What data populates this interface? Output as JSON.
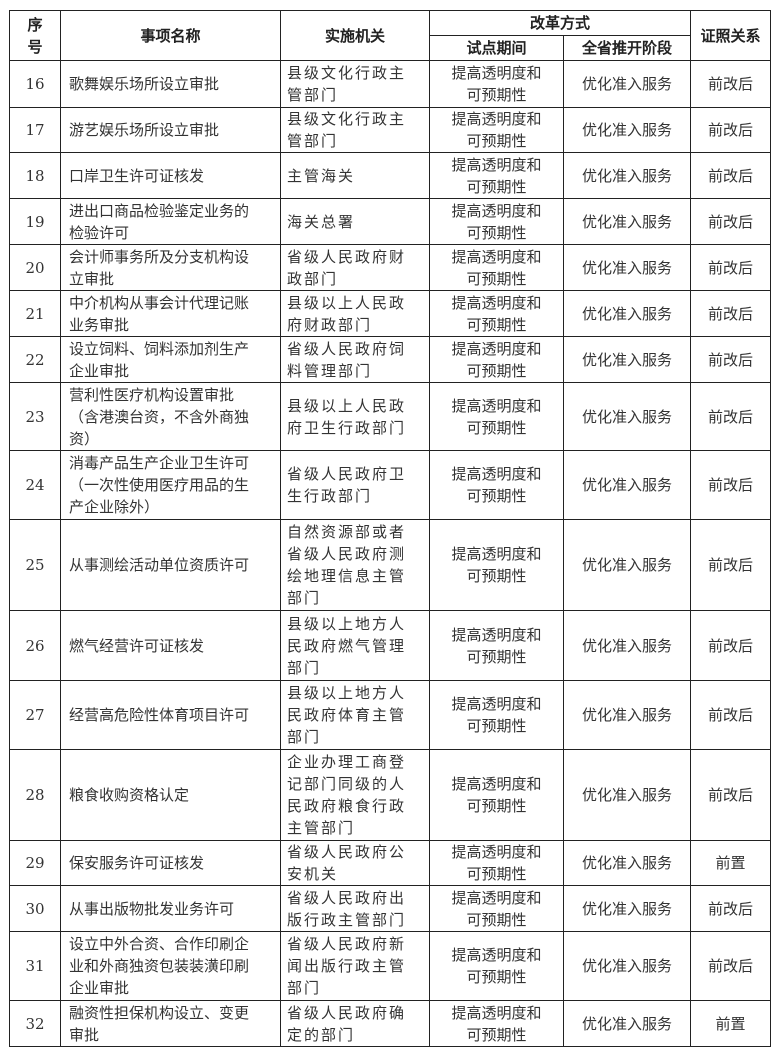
{
  "header": {
    "seq": "序\n号",
    "name": "事项名称",
    "agency": "实施机关",
    "reform": "改革方式",
    "pilot": "试点期间",
    "province": "全省推开阶段",
    "relation": "证照关系"
  },
  "rows": [
    {
      "no": "16",
      "name": "歌舞娱乐场所设立审批",
      "agency": "县级文化行政主\n管部门",
      "pilot": "提高透明度和\n可预期性",
      "province": "优化准入服务",
      "relation": "前改后"
    },
    {
      "no": "17",
      "name": "游艺娱乐场所设立审批",
      "agency": "县级文化行政主\n管部门",
      "pilot": "提高透明度和\n可预期性",
      "province": "优化准入服务",
      "relation": "前改后"
    },
    {
      "no": "18",
      "name": "口岸卫生许可证核发",
      "agency": "主管海关",
      "pilot": "提高透明度和\n可预期性",
      "province": "优化准入服务",
      "relation": "前改后"
    },
    {
      "no": "19",
      "name": "进出口商品检验鉴定业务的\n检验许可",
      "agency": "海关总署",
      "pilot": "提高透明度和\n可预期性",
      "province": "优化准入服务",
      "relation": "前改后"
    },
    {
      "no": "20",
      "name": "会计师事务所及分支机构设\n立审批",
      "agency": "省级人民政府财\n政部门",
      "pilot": "提高透明度和\n可预期性",
      "province": "优化准入服务",
      "relation": "前改后"
    },
    {
      "no": "21",
      "name": "中介机构从事会计代理记账\n业务审批",
      "agency": "县级以上人民政\n府财政部门",
      "pilot": "提高透明度和\n可预期性",
      "province": "优化准入服务",
      "relation": "前改后"
    },
    {
      "no": "22",
      "name": "设立饲料、饲料添加剂生产\n企业审批",
      "agency": "省级人民政府饲\n料管理部门",
      "pilot": "提高透明度和\n可预期性",
      "province": "优化准入服务",
      "relation": "前改后"
    },
    {
      "no": "23",
      "name": "营利性医疗机构设置审批\n（含港澳台资，不含外商独\n资）",
      "agency": "县级以上人民政\n府卫生行政部门",
      "pilot": "提高透明度和\n可预期性",
      "province": "优化准入服务",
      "relation": "前改后"
    },
    {
      "no": "24",
      "name": "消毒产品生产企业卫生许可\n（一次性使用医疗用品的生\n产企业除外）",
      "agency": "省级人民政府卫\n生行政部门",
      "pilot": "提高透明度和\n可预期性",
      "province": "优化准入服务",
      "relation": "前改后"
    },
    {
      "no": "25",
      "name": "从事测绘活动单位资质许可",
      "agency": "自然资源部或者\n省级人民政府测\n绘地理信息主管\n部门",
      "pilot": "提高透明度和\n可预期性",
      "province": "优化准入服务",
      "relation": "前改后"
    },
    {
      "no": "26",
      "name": "燃气经营许可证核发",
      "agency": "县级以上地方人\n民政府燃气管理\n部门",
      "pilot": "提高透明度和\n可预期性",
      "province": "优化准入服务",
      "relation": "前改后"
    },
    {
      "no": "27",
      "name": "经营高危险性体育项目许可",
      "agency": "县级以上地方人\n民政府体育主管\n部门",
      "pilot": "提高透明度和\n可预期性",
      "province": "优化准入服务",
      "relation": "前改后"
    },
    {
      "no": "28",
      "name": "粮食收购资格认定",
      "agency": "企业办理工商登\n记部门同级的人\n民政府粮食行政\n主管部门",
      "pilot": "提高透明度和\n可预期性",
      "province": "优化准入服务",
      "relation": "前改后"
    },
    {
      "no": "29",
      "name": "保安服务许可证核发",
      "agency": "省级人民政府公\n安机关",
      "pilot": "提高透明度和\n可预期性",
      "province": "优化准入服务",
      "relation": "前置"
    },
    {
      "no": "30",
      "name": "从事出版物批发业务许可",
      "agency": "省级人民政府出\n版行政主管部门",
      "pilot": "提高透明度和\n可预期性",
      "province": "优化准入服务",
      "relation": "前改后"
    },
    {
      "no": "31",
      "name": "设立中外合资、合作印刷企\n业和外商独资包装装潢印刷\n企业审批",
      "agency": "省级人民政府新\n闻出版行政主管\n部门",
      "pilot": "提高透明度和\n可预期性",
      "province": "优化准入服务",
      "relation": "前改后"
    },
    {
      "no": "32",
      "name": "融资性担保机构设立、变更\n审批",
      "agency": "省级人民政府确\n定的部门",
      "pilot": "提高透明度和\n可预期性",
      "province": "优化准入服务",
      "relation": "前置"
    }
  ]
}
